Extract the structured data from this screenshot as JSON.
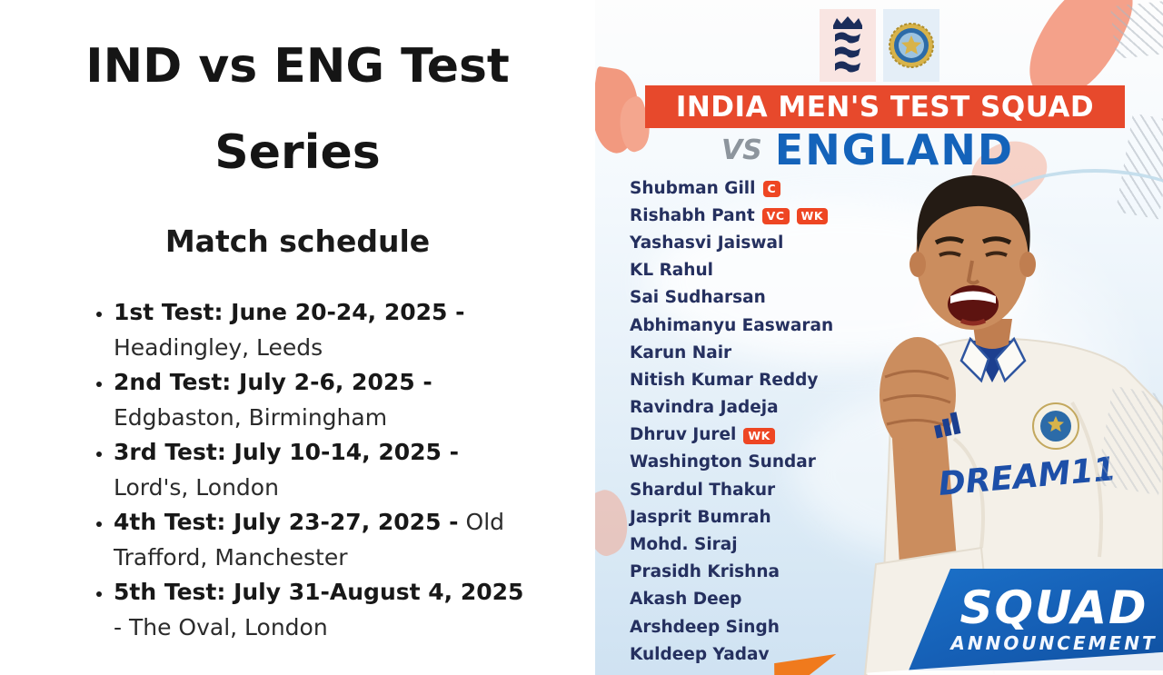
{
  "left_panel": {
    "title_line1": "IND vs ENG Test",
    "title_line2": "Series",
    "subtitle": "Match schedule",
    "schedule": [
      {
        "bold": "1st Test: June 20-24, 2025 -",
        "rest": "Headingley, Leeds"
      },
      {
        "bold": "2nd Test: July 2-6, 2025 -",
        "rest": "Edgbaston, Birmingham"
      },
      {
        "bold": "3rd Test: July 10-14, 2025 -",
        "rest": "Lord's, London"
      },
      {
        "bold": "4th Test: July 23-27, 2025 -",
        "rest": "Old Trafford, Manchester"
      },
      {
        "bold": "5th Test: July 31-August 4, 2025",
        "rest": "- The Oval, London"
      }
    ]
  },
  "poster": {
    "banner_title": "INDIA MEN'S TEST SQUAD",
    "vs_label": "VS",
    "opponent": "ENGLAND",
    "players": [
      {
        "name": "Shubman Gill",
        "badges": [
          "C"
        ]
      },
      {
        "name": "Rishabh Pant",
        "badges": [
          "VC",
          "WK"
        ]
      },
      {
        "name": "Yashasvi Jaiswal",
        "badges": []
      },
      {
        "name": "KL Rahul",
        "badges": []
      },
      {
        "name": "Sai Sudharsan",
        "badges": []
      },
      {
        "name": "Abhimanyu Easwaran",
        "badges": []
      },
      {
        "name": "Karun Nair",
        "badges": []
      },
      {
        "name": "Nitish Kumar Reddy",
        "badges": []
      },
      {
        "name": "Ravindra Jadeja",
        "badges": []
      },
      {
        "name": "Dhruv Jurel",
        "badges": [
          "WK"
        ]
      },
      {
        "name": "Washington Sundar",
        "badges": []
      },
      {
        "name": "Shardul Thakur",
        "badges": []
      },
      {
        "name": "Jasprit Bumrah",
        "badges": []
      },
      {
        "name": "Mohd. Siraj",
        "badges": []
      },
      {
        "name": "Prasidh Krishna",
        "badges": []
      },
      {
        "name": "Akash Deep",
        "badges": []
      },
      {
        "name": "Arshdeep Singh",
        "badges": []
      },
      {
        "name": "Kuldeep Yadav",
        "badges": []
      }
    ],
    "jersey_text": "DREAM11",
    "footer_badge": {
      "line1": "SQUAD",
      "line2": "ANNOUNCEMENT"
    }
  },
  "colors": {
    "banner_red": "#E7492C",
    "england_blue": "#1463BA",
    "name_navy": "#25305F",
    "badge_red": "#EE4623",
    "squad_banner_blue": "#155EB4"
  }
}
